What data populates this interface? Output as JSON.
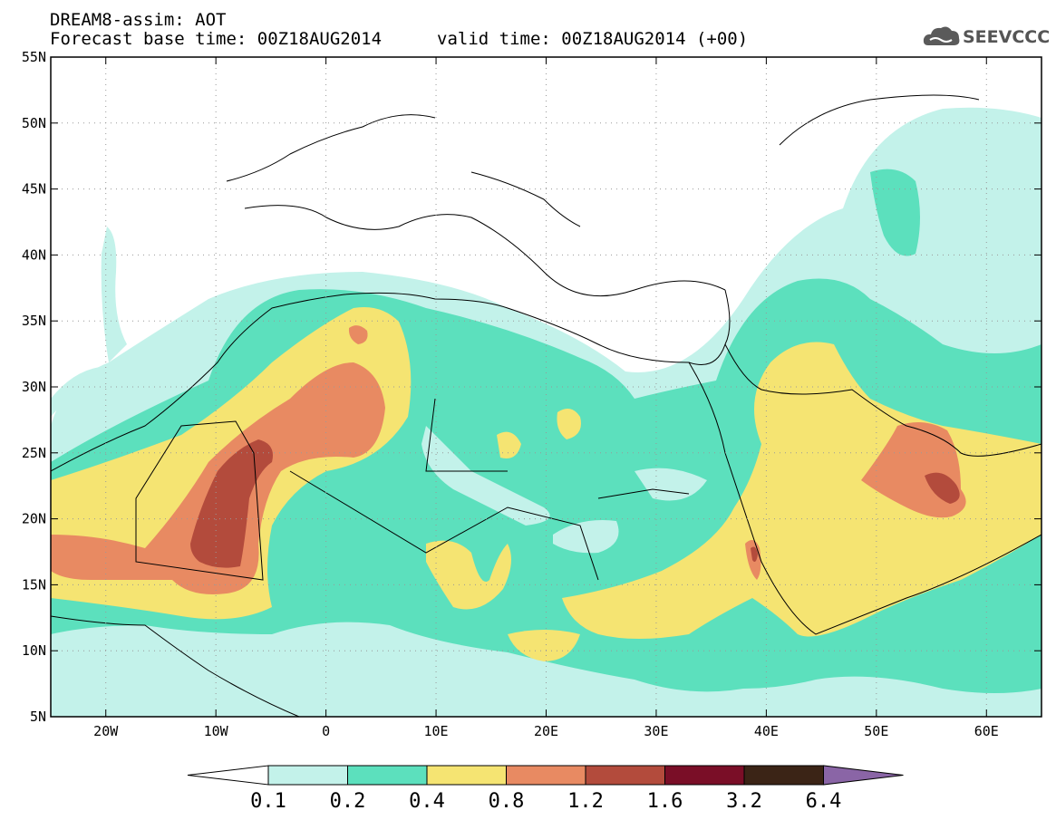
{
  "header": {
    "title": "DREAM8-assim: AOT",
    "base_time": "Forecast base time: 00Z18AUG2014",
    "valid_time": "valid time: 00Z18AUG2014 (+00)",
    "logo_text": "SEEVCCC"
  },
  "map": {
    "projection": "lat-lon",
    "lon_range": [
      -25,
      65
    ],
    "lat_range": [
      5,
      55
    ],
    "lat_ticks": [
      {
        "value": 55,
        "label": "55N"
      },
      {
        "value": 50,
        "label": "50N"
      },
      {
        "value": 45,
        "label": "45N"
      },
      {
        "value": 40,
        "label": "40N"
      },
      {
        "value": 35,
        "label": "35N"
      },
      {
        "value": 30,
        "label": "30N"
      },
      {
        "value": 25,
        "label": "25N"
      },
      {
        "value": 20,
        "label": "20N"
      },
      {
        "value": 15,
        "label": "15N"
      },
      {
        "value": 10,
        "label": "10N"
      },
      {
        "value": 5,
        "label": "5N"
      }
    ],
    "lon_ticks": [
      {
        "value": -20,
        "label": "20W"
      },
      {
        "value": -10,
        "label": "10W"
      },
      {
        "value": 0,
        "label": "0"
      },
      {
        "value": 10,
        "label": "10E"
      },
      {
        "value": 20,
        "label": "20E"
      },
      {
        "value": 30,
        "label": "30E"
      },
      {
        "value": 40,
        "label": "40E"
      },
      {
        "value": 50,
        "label": "50E"
      },
      {
        "value": 60,
        "label": "60E"
      }
    ],
    "grid": "dotted"
  },
  "colorbar": {
    "levels": [
      "0.1",
      "0.2",
      "0.4",
      "0.8",
      "1.2",
      "1.6",
      "3.2",
      "6.4"
    ],
    "under_color": "#ffffff",
    "colors": [
      "#c3f2ea",
      "#5ce0bd",
      "#f5e472",
      "#e88a62",
      "#b34b3c",
      "#7a0e27",
      "#3b2416"
    ],
    "over_color": "#8a65a6"
  }
}
